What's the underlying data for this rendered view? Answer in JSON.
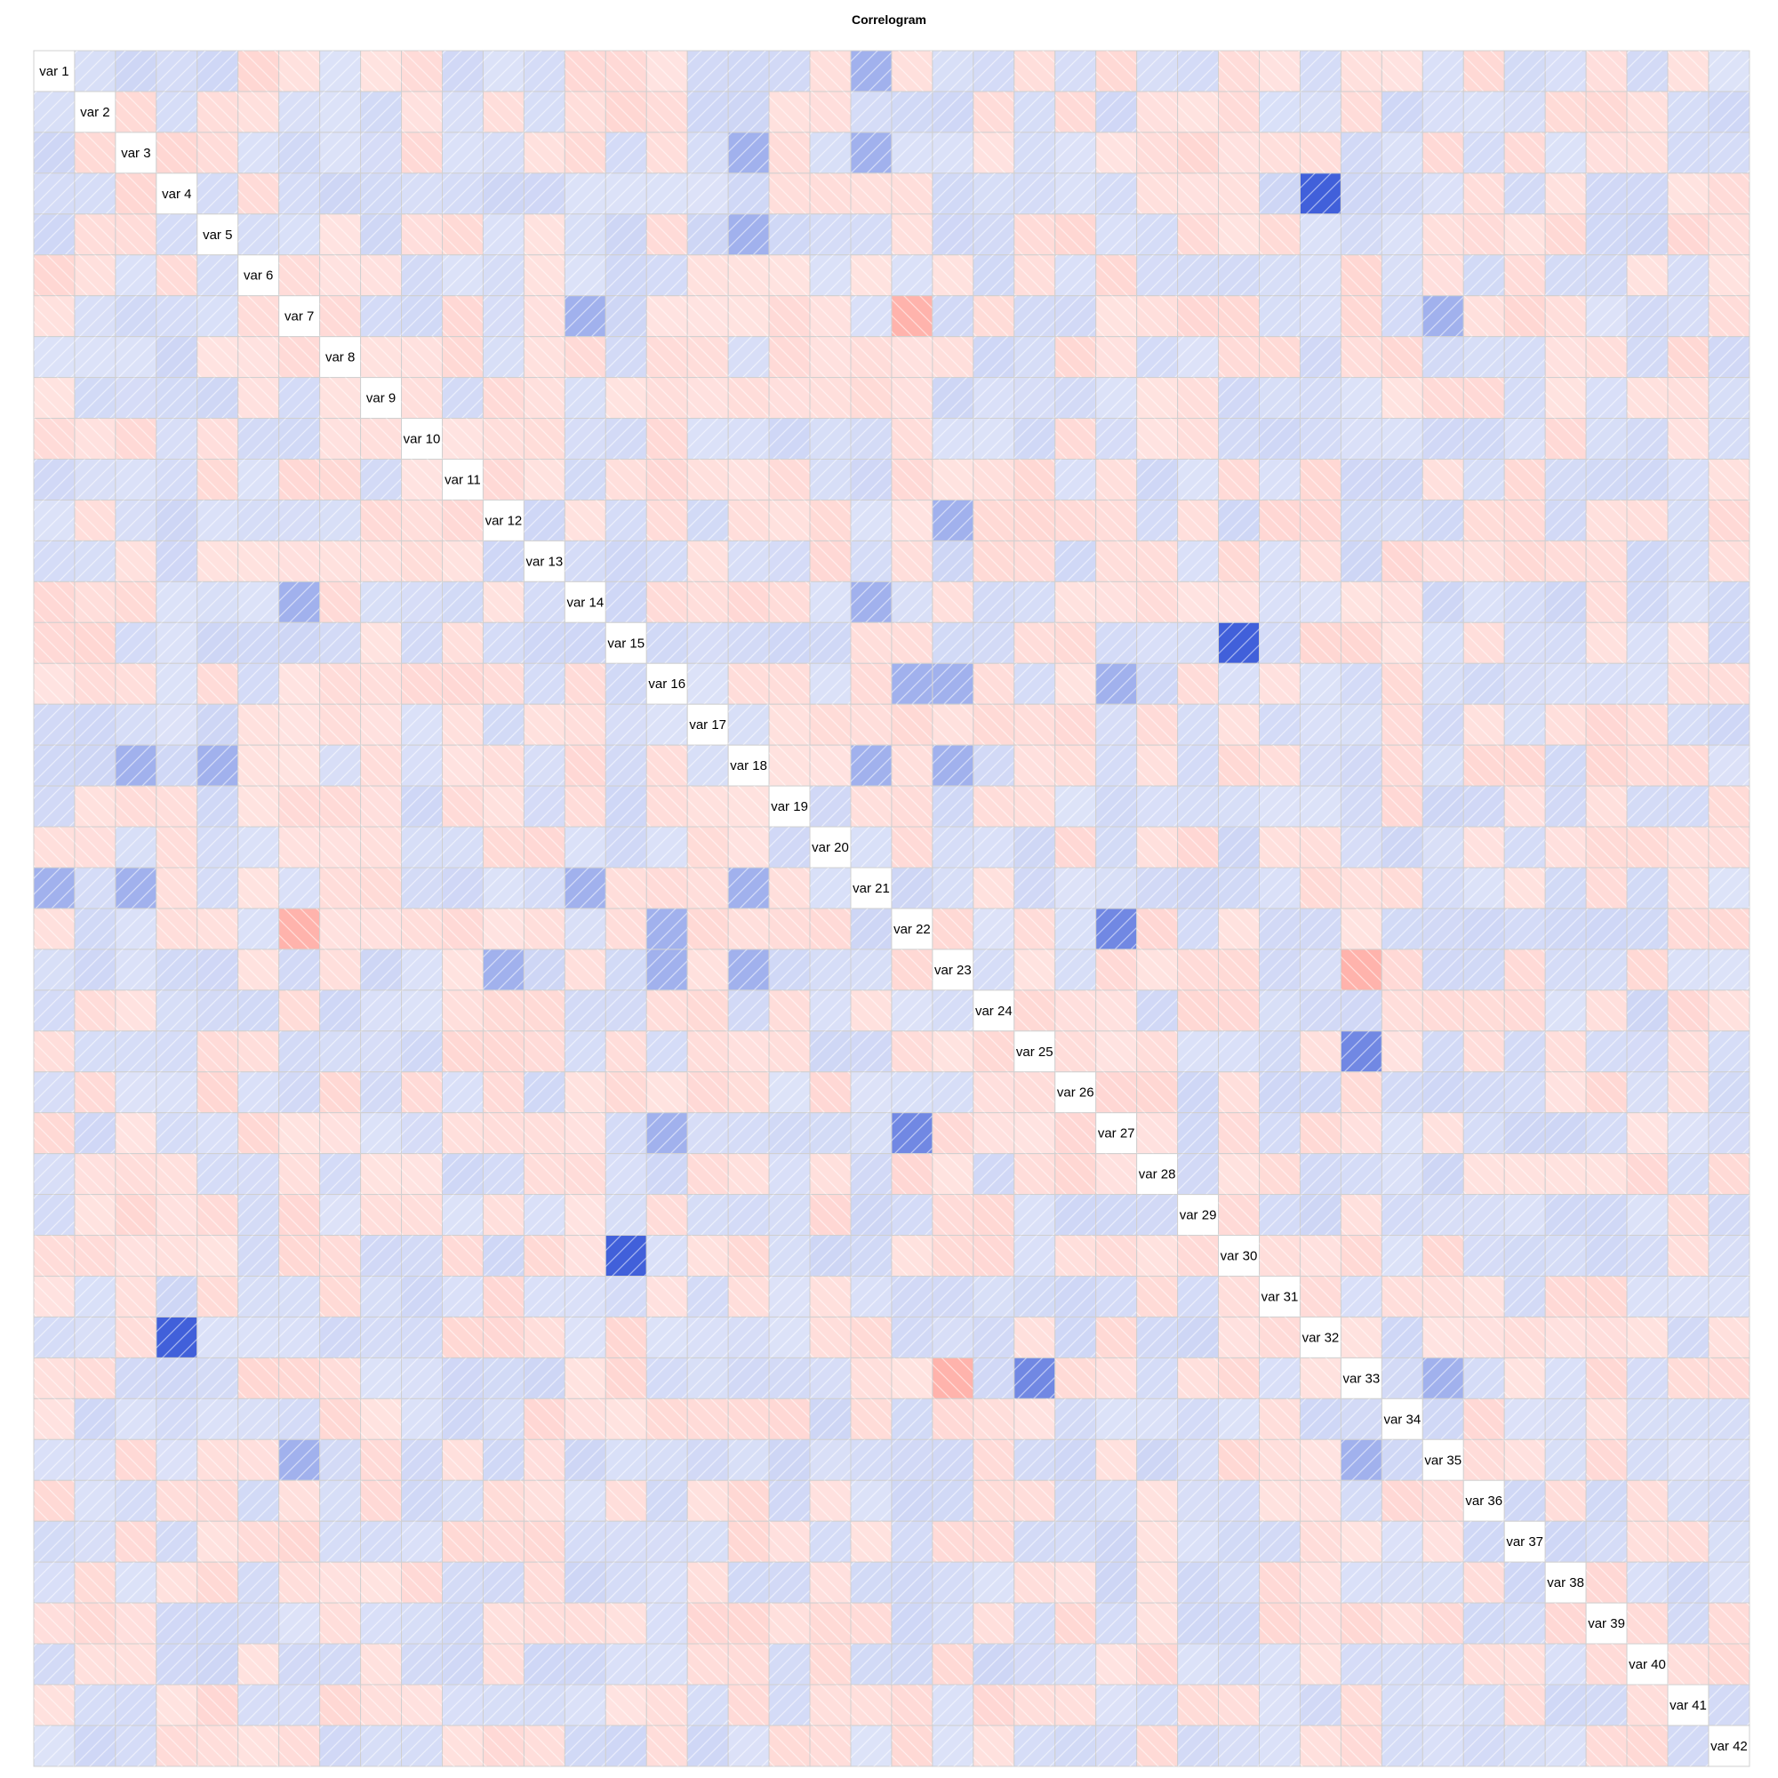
{
  "chart_data": {
    "type": "heatmap",
    "subtype": "correlogram",
    "title": "Correlogram",
    "variables": [
      "var 1",
      "var 2",
      "var 3",
      "var 4",
      "var 5",
      "var 6",
      "var 7",
      "var 8",
      "var 9",
      "var 10",
      "var 11",
      "var 12",
      "var 13",
      "var 14",
      "var 15",
      "var 16",
      "var 17",
      "var 18",
      "var 19",
      "var 20",
      "var 21",
      "var 22",
      "var 23",
      "var 24",
      "var 25",
      "var 26",
      "var 27",
      "var 28",
      "var 29",
      "var 30",
      "var 31",
      "var 32",
      "var 33",
      "var 34",
      "var 35",
      "var 36",
      "var 37",
      "var 38",
      "var 39",
      "var 40",
      "var 41",
      "var 42"
    ],
    "color_scale": {
      "negative": "#ff4d3d",
      "zero": "#ffffff",
      "positive": "#2448d4",
      "range": [
        -1,
        1
      ]
    },
    "panel_style": "shade",
    "notable_correlations": [
      {
        "a": "var 1",
        "b": "var 21",
        "r": 0.35
      },
      {
        "a": "var 3",
        "b": "var 18",
        "r": 0.35
      },
      {
        "a": "var 3",
        "b": "var 21",
        "r": 0.35
      },
      {
        "a": "var 4",
        "b": "var 32",
        "r": 0.85
      },
      {
        "a": "var 5",
        "b": "var 18",
        "r": 0.35
      },
      {
        "a": "var 7",
        "b": "var 14",
        "r": 0.35
      },
      {
        "a": "var 7",
        "b": "var 22",
        "r": -0.35
      },
      {
        "a": "var 7",
        "b": "var 35",
        "r": 0.35
      },
      {
        "a": "var 12",
        "b": "var 23",
        "r": 0.35
      },
      {
        "a": "var 14",
        "b": "var 21",
        "r": 0.35
      },
      {
        "a": "var 15",
        "b": "var 30",
        "r": 0.85
      },
      {
        "a": "var 16",
        "b": "var 22",
        "r": 0.35
      },
      {
        "a": "var 16",
        "b": "var 23",
        "r": 0.35
      },
      {
        "a": "var 16",
        "b": "var 27",
        "r": 0.35
      },
      {
        "a": "var 18",
        "b": "var 21",
        "r": 0.35
      },
      {
        "a": "var 18",
        "b": "var 23",
        "r": 0.35
      },
      {
        "a": "var 22",
        "b": "var 27",
        "r": 0.6
      },
      {
        "a": "var 23",
        "b": "var 33",
        "r": -0.35
      },
      {
        "a": "var 25",
        "b": "var 33",
        "r": 0.6
      },
      {
        "a": "var 33",
        "b": "var 35",
        "r": 0.35
      }
    ],
    "weak_pattern_seed": 7
  }
}
